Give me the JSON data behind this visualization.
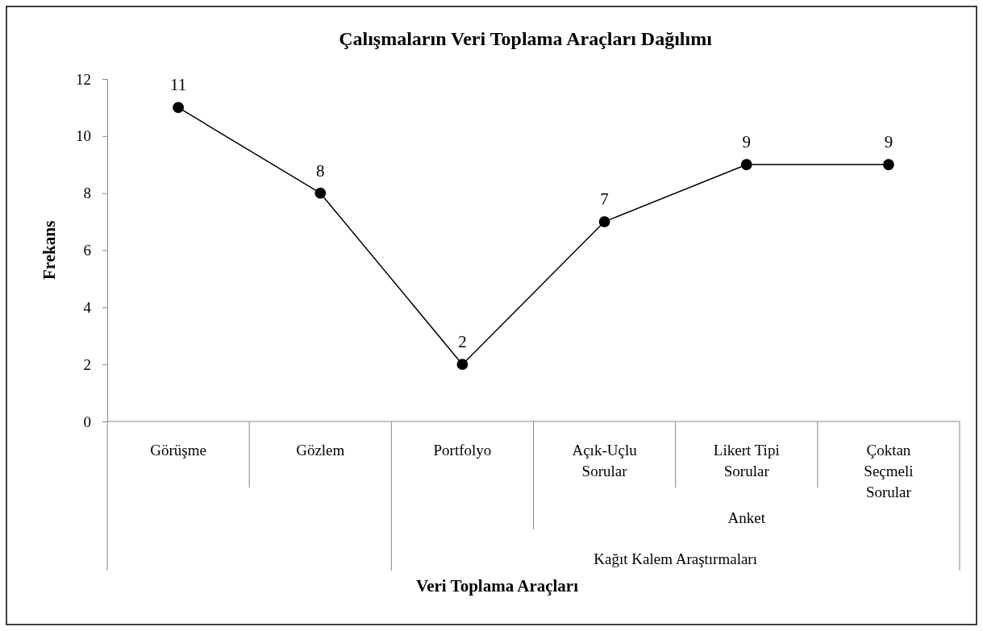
{
  "chart_data": {
    "type": "line",
    "title": "Çalışmaların Veri Toplama Araçları Dağılımı",
    "xlabel": "Veri Toplama Araçları",
    "ylabel": "Frekans",
    "categories": [
      "Görüşme",
      "Gözlem",
      "Portfolyo",
      "Açık-Uçlu Sorular",
      "Likert Tipi Sorular",
      "Çoktan Seçmeli Sorular"
    ],
    "series": [
      {
        "color": "#000000",
        "values": [
          11,
          8,
          2,
          7,
          9,
          9
        ]
      }
    ],
    "ylim": [
      0,
      12
    ],
    "yticks": [
      0,
      2,
      4,
      6,
      8,
      10,
      12
    ],
    "grid": false,
    "marker": "circle",
    "line_style": "solid",
    "data_labels": true,
    "annotations": [
      "Anket",
      "Kağıt Kalem Araştırmaları"
    ]
  }
}
